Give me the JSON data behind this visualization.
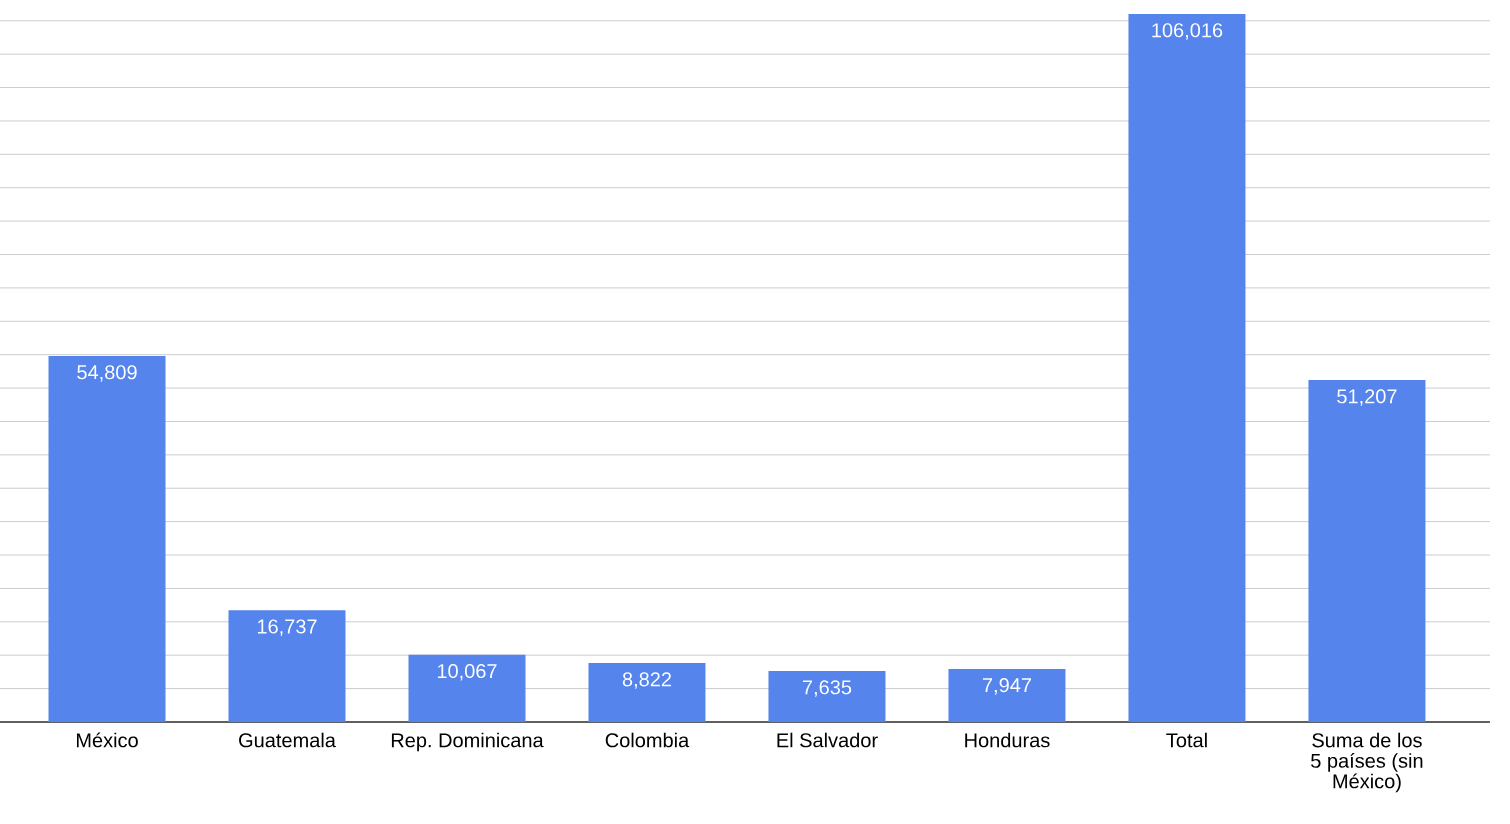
{
  "chart_data": {
    "type": "bar",
    "categories": [
      "México",
      "Guatemala",
      "Rep. Dominicana",
      "Colombia",
      "El Salvador",
      "Honduras",
      "Total",
      "Suma de los 5 países (sin México)"
    ],
    "values": [
      54809,
      16737,
      10067,
      8822,
      7635,
      7947,
      106016,
      51207
    ],
    "value_labels": [
      "54,809",
      "16,737",
      "10,067",
      "8,822",
      "7,635",
      "7,947",
      "106,016",
      "51,207"
    ],
    "color": "#5484ec",
    "grid": "y",
    "tick_labels": "x"
  }
}
